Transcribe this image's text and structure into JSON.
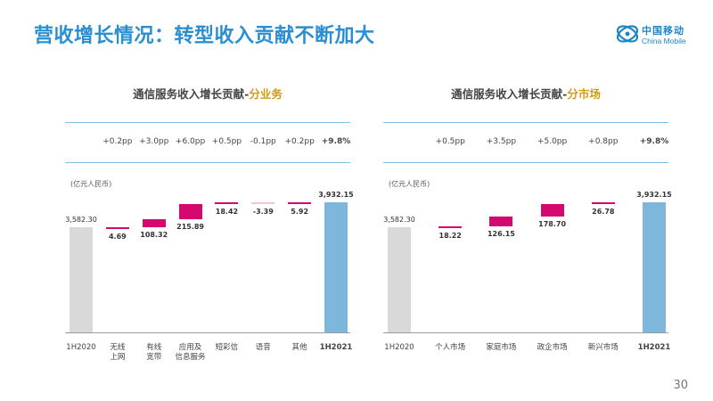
{
  "page": {
    "title": "营收增长情况：转型收入贡献不断加大",
    "page_number": "30",
    "logo_cn": "中国移动",
    "logo_en": "China Mobile"
  },
  "colors": {
    "title_blue": "#2a8fd0",
    "start_bar": "#d9d9d9",
    "increase_bar": "#d4086e",
    "end_bar": "#7fb6dc",
    "rule": "#7ec0e6",
    "highlight": "#d49a12"
  },
  "chart_data": [
    {
      "type": "waterfall",
      "title_prefix": "通信服务收入增长贡献-",
      "title_highlight": "分业务",
      "unit": "(亿元人民币)",
      "start": {
        "label": "1H2020",
        "value": 3582.3,
        "value_label": "3,582.30"
      },
      "end": {
        "label": "1H2021",
        "value": 3932.15,
        "value_label": "3,932.15",
        "pp": "+9.8%"
      },
      "steps": [
        {
          "label": "无线\n上网",
          "value": 4.69,
          "value_label": "4.69",
          "pp": "+0.2pp"
        },
        {
          "label": "有线\n宽带",
          "value": 108.32,
          "value_label": "108.32",
          "pp": "+3.0pp"
        },
        {
          "label": "应用及\n信息服务",
          "value": 215.89,
          "value_label": "215.89",
          "pp": "+6.0pp"
        },
        {
          "label": "短彩信",
          "value": 18.42,
          "value_label": "18.42",
          "pp": "+0.5pp"
        },
        {
          "label": "语音",
          "value": -3.39,
          "value_label": "-3.39",
          "pp": "-0.1pp"
        },
        {
          "label": "其他",
          "value": 5.92,
          "value_label": "5.92",
          "pp": "+0.2pp"
        }
      ]
    },
    {
      "type": "waterfall",
      "title_prefix": "通信服务收入增长贡献-",
      "title_highlight": "分市场",
      "unit": "(亿元人民币)",
      "start": {
        "label": "1H2020",
        "value": 3582.3,
        "value_label": "3,582.30"
      },
      "end": {
        "label": "1H2021",
        "value": 3932.15,
        "value_label": "3,932.15",
        "pp": "+9.8%"
      },
      "steps": [
        {
          "label": "个人市场",
          "value": 18.22,
          "value_label": "18.22",
          "pp": "+0.5pp"
        },
        {
          "label": "家庭市场",
          "value": 126.15,
          "value_label": "126.15",
          "pp": "+3.5pp"
        },
        {
          "label": "政企市场",
          "value": 178.7,
          "value_label": "178.70",
          "pp": "+5.0pp"
        },
        {
          "label": "新兴市场",
          "value": 26.78,
          "value_label": "26.78",
          "pp": "+0.8pp"
        }
      ]
    }
  ]
}
